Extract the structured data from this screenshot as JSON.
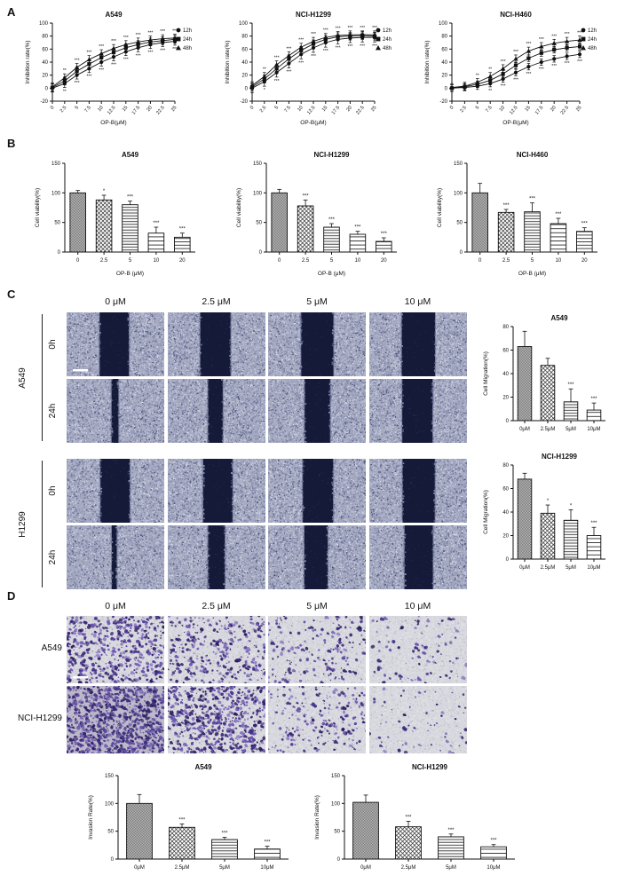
{
  "panels": {
    "a": "A",
    "b": "B",
    "c": "C",
    "d": "D"
  },
  "chart_data": [
    {
      "type": "line",
      "title": "A549",
      "xlabel": "OP-B(μM)",
      "ylabel": "Inhibition rate(%)",
      "x": [
        0,
        2.5,
        5,
        7.5,
        10,
        12.5,
        15,
        17.5,
        20,
        22.5,
        25
      ],
      "ylim": [
        -20,
        100
      ],
      "yticks": [
        -20,
        0,
        20,
        40,
        60,
        80,
        100
      ],
      "series": [
        {
          "name": "12h",
          "values": [
            0,
            7,
            20,
            30,
            40,
            48,
            56,
            62,
            67,
            70,
            72
          ],
          "err": 6
        },
        {
          "name": "24h",
          "values": [
            1,
            11,
            26,
            37,
            47,
            55,
            62,
            67,
            71,
            73,
            75
          ],
          "err": 6
        },
        {
          "name": "48h",
          "values": [
            2,
            16,
            32,
            44,
            53,
            61,
            67,
            71,
            74,
            76,
            77
          ],
          "err": 6
        }
      ],
      "sig_top": [
        "",
        "**",
        "***",
        "***",
        "***",
        "***",
        "***",
        "***",
        "***",
        "***",
        "***"
      ],
      "sig_bottom": [
        "",
        "**",
        "***",
        "***",
        "***",
        "***",
        "***",
        "***",
        "***",
        "***",
        "***"
      ]
    },
    {
      "type": "line",
      "title": "NCI-H1299",
      "xlabel": "OP-B(μM)",
      "ylabel": "Inhibition rate(%)",
      "x": [
        0,
        2.5,
        5,
        7.5,
        10,
        12.5,
        15,
        17.5,
        20,
        22.5,
        25
      ],
      "ylim": [
        -20,
        100
      ],
      "yticks": [
        -20,
        0,
        20,
        40,
        60,
        80,
        100
      ],
      "series": [
        {
          "name": "12h",
          "values": [
            0,
            10,
            24,
            38,
            52,
            62,
            70,
            75,
            77,
            78,
            78
          ],
          "err": 7
        },
        {
          "name": "24h",
          "values": [
            2,
            14,
            30,
            45,
            58,
            68,
            75,
            79,
            80,
            81,
            80
          ],
          "err": 6
        },
        {
          "name": "48h",
          "values": [
            4,
            18,
            36,
            50,
            63,
            72,
            78,
            81,
            82,
            82,
            82
          ],
          "err": 6
        }
      ],
      "sig_top": [
        "",
        "**",
        "***",
        "***",
        "***",
        "***",
        "***",
        "***",
        "***",
        "***",
        "***"
      ],
      "sig_bottom": [
        "",
        "*",
        "***",
        "***",
        "***",
        "***",
        "***",
        "***",
        "***",
        "***",
        "***"
      ]
    },
    {
      "type": "line",
      "title": "NCI-H460",
      "xlabel": "OP-B(μM)",
      "ylabel": "Inhibition rate(%)",
      "x": [
        0,
        2.5,
        5,
        7.5,
        10,
        12.5,
        15,
        17.5,
        20,
        22.5,
        25
      ],
      "ylim": [
        -20,
        100
      ],
      "yticks": [
        -20,
        0,
        20,
        40,
        60,
        80,
        100
      ],
      "series": [
        {
          "name": "12h",
          "values": [
            0,
            1,
            3,
            7,
            14,
            24,
            33,
            40,
            45,
            49,
            52
          ],
          "err": 5
        },
        {
          "name": "24h",
          "values": [
            0,
            2,
            6,
            12,
            22,
            35,
            46,
            54,
            59,
            62,
            64
          ],
          "err": 5
        },
        {
          "name": "48h",
          "values": [
            1,
            3,
            9,
            18,
            30,
            45,
            57,
            64,
            69,
            72,
            74
          ],
          "err": 6
        }
      ],
      "sig_top": [
        "",
        "",
        "**",
        "**",
        "***",
        "***",
        "***",
        "***",
        "***",
        "***",
        "***"
      ],
      "sig_bottom": [
        "",
        "",
        "",
        "**",
        "***",
        "***",
        "***",
        "***",
        "***",
        "***",
        "***"
      ]
    },
    {
      "type": "bar",
      "title": "A549",
      "xlabel": "OP-B (μM)",
      "ylabel": "Cell viability(%)",
      "categories": [
        "0",
        "2.5",
        "5",
        "10",
        "20"
      ],
      "values": [
        100,
        88,
        80,
        32,
        25
      ],
      "errors": [
        4,
        8,
        6,
        10,
        7
      ],
      "sig": [
        "",
        "*",
        "***",
        "***",
        "***"
      ],
      "ylim": [
        0,
        150
      ],
      "yticks": [
        0,
        50,
        100,
        150
      ]
    },
    {
      "type": "bar",
      "title": "NCI-H1299",
      "xlabel": "OP-B (μM)",
      "ylabel": "Cell viability(%)",
      "categories": [
        "0",
        "2.5",
        "5",
        "10",
        "20"
      ],
      "values": [
        100,
        78,
        42,
        30,
        18
      ],
      "errors": [
        6,
        10,
        6,
        5,
        6
      ],
      "sig": [
        "",
        "***",
        "***",
        "***",
        "***"
      ],
      "ylim": [
        0,
        150
      ],
      "yticks": [
        0,
        50,
        100,
        150
      ]
    },
    {
      "type": "bar",
      "title": "NCI-H460",
      "xlabel": "OP-B (μM)",
      "ylabel": "Cell viability(%)",
      "categories": [
        "0",
        "2.5",
        "5",
        "10",
        "20"
      ],
      "values": [
        100,
        67,
        68,
        48,
        35
      ],
      "errors": [
        16,
        5,
        15,
        9,
        6
      ],
      "sig": [
        "",
        "***",
        "***",
        "***",
        "***"
      ],
      "ylim": [
        0,
        150
      ],
      "yticks": [
        0,
        50,
        100,
        150
      ]
    },
    {
      "type": "bar",
      "title": "A549",
      "xlabel": "",
      "ylabel": "Cell Migration(%)",
      "categories": [
        "0μM",
        "2.5μM",
        "5μM",
        "10μM"
      ],
      "values": [
        63,
        47,
        16,
        9
      ],
      "errors": [
        13,
        6,
        11,
        6
      ],
      "sig": [
        "",
        "",
        "***",
        "***"
      ],
      "ylim": [
        0,
        80
      ],
      "yticks": [
        0,
        20,
        40,
        60,
        80
      ]
    },
    {
      "type": "bar",
      "title": "NCI-H1299",
      "xlabel": "",
      "ylabel": "Cell Migration(%)",
      "categories": [
        "0μM",
        "2.5μM",
        "5μM",
        "10μM"
      ],
      "values": [
        68,
        39,
        33,
        20
      ],
      "errors": [
        5,
        7,
        9,
        7
      ],
      "sig": [
        "",
        "*",
        "*",
        "***"
      ],
      "ylim": [
        0,
        80
      ],
      "yticks": [
        0,
        20,
        40,
        60,
        80
      ]
    },
    {
      "type": "bar",
      "title": "A549",
      "xlabel": "",
      "ylabel": "Invasion Rate(%)",
      "categories": [
        "0μM",
        "2.5μM",
        "5μM",
        "10μM"
      ],
      "values": [
        100,
        57,
        35,
        18
      ],
      "errors": [
        16,
        6,
        4,
        5
      ],
      "sig": [
        "",
        "***",
        "***",
        "***"
      ],
      "ylim": [
        0,
        150
      ],
      "yticks": [
        0,
        50,
        100,
        150
      ]
    },
    {
      "type": "bar",
      "title": "NCI-H1299",
      "xlabel": "",
      "ylabel": "Invasion Rate(%)",
      "categories": [
        "0μM",
        "2.5μM",
        "5μM",
        "10μM"
      ],
      "values": [
        102,
        58,
        40,
        22
      ],
      "errors": [
        13,
        10,
        5,
        4
      ],
      "sig": [
        "",
        "***",
        "***",
        "***"
      ],
      "ylim": [
        0,
        150
      ],
      "yticks": [
        0,
        50,
        100,
        150
      ]
    }
  ],
  "wound_assay": {
    "col_labels": [
      "0 μM",
      "2.5 μM",
      "5 μM",
      "10 μM"
    ],
    "groups": [
      {
        "cell_line": "A549",
        "rows": [
          "0h",
          "24h"
        ]
      },
      {
        "cell_line": "H1299",
        "rows": [
          "0h",
          "24h"
        ]
      }
    ]
  },
  "invasion_assay": {
    "col_labels": [
      "0 μM",
      "2.5 μM",
      "5 μM",
      "10 μM"
    ],
    "row_labels": [
      "A549",
      "NCI-H1299"
    ]
  }
}
